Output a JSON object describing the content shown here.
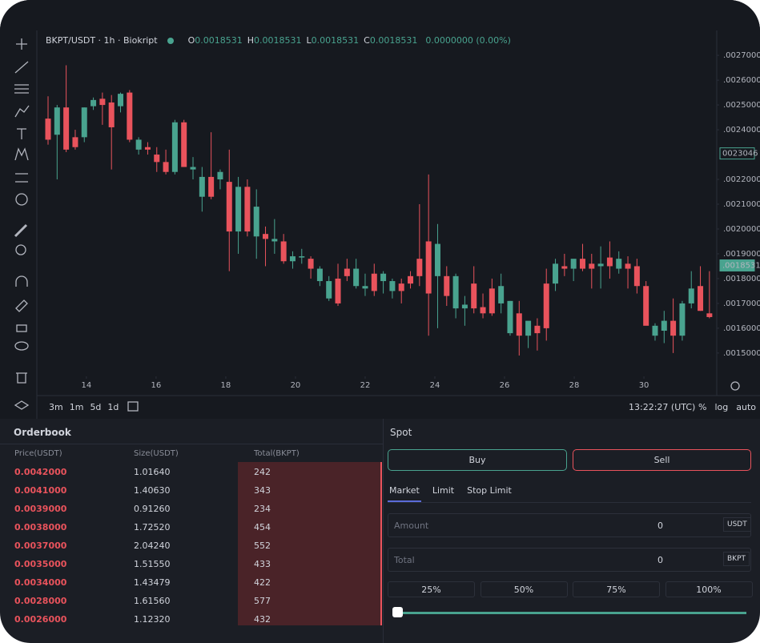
{
  "chart_data": {
    "type": "candlestick",
    "title": "BKPT/USDT · 1h · Biokript",
    "ohlc_legend": [
      {
        "key": "O",
        "value": "0.0018531"
      },
      {
        "key": "H",
        "value": "0.0018531"
      },
      {
        "key": "L",
        "value": "0.0018531"
      },
      {
        "key": "C",
        "value": "0.0018531"
      }
    ],
    "change": "0.0000000 (0.00%)",
    "x": [
      12.9,
      13.16,
      13.42,
      13.68,
      13.94,
      14.2,
      14.46,
      14.72,
      14.98,
      15.24,
      15.5,
      15.76,
      16.02,
      16.28,
      16.54,
      16.8,
      17.06,
      17.32,
      17.58,
      17.84,
      18.1,
      18.36,
      18.62,
      18.88,
      19.14,
      19.4,
      19.66,
      19.92,
      20.18,
      20.44,
      20.7,
      20.96,
      21.22,
      21.48,
      21.74,
      22,
      22.26,
      22.52,
      22.78,
      23.04,
      23.3,
      23.56,
      23.82,
      24.08,
      24.34,
      24.6,
      24.86,
      25.12,
      25.38,
      25.64,
      25.9,
      26.16,
      26.42,
      26.68,
      26.94,
      27.2,
      27.46,
      27.72,
      27.98,
      28.24,
      28.5,
      28.76,
      29.02,
      29.28,
      29.54,
      29.8,
      30.06,
      30.32,
      30.58,
      30.84,
      31.1,
      31.36,
      31.62,
      31.88
    ],
    "open": [
      0.002445,
      0.00238,
      0.00249,
      0.00237,
      0.00237,
      0.002495,
      0.002525,
      0.00251,
      0.002495,
      0.00255,
      0.00232,
      0.00233,
      0.0023,
      0.00227,
      0.00223,
      0.00243,
      0.00224,
      0.00213,
      0.00221,
      0.0022,
      0.00219,
      0.00199,
      0.00217,
      0.00197,
      0.00198,
      0.00195,
      0.00195,
      0.00187,
      0.001885,
      0.00188,
      0.00179,
      0.00172,
      0.0018,
      0.00184,
      0.00177,
      0.00176,
      0.00182,
      0.00179,
      0.00175,
      0.00178,
      0.00181,
      0.00188,
      0.00195,
      0.00181,
      0.00181,
      0.00168,
      0.00168,
      0.00178,
      0.001685,
      0.00176,
      0.0017,
      0.00158,
      0.00166,
      0.00157,
      0.00161,
      0.00178,
      0.00178,
      0.00185,
      0.00184,
      0.00188,
      0.00186,
      0.00185,
      0.001885,
      0.00184,
      0.00186,
      0.00185,
      0.00177,
      0.00157,
      0.00159,
      0.00163,
      0.00157,
      0.0017,
      0.00177,
      0.00166
    ],
    "high": [
      0.002535,
      0.0025,
      0.00266,
      0.0024,
      0.00249,
      0.00253,
      0.00255,
      0.00254,
      0.00255,
      0.00256,
      0.00237,
      0.00235,
      0.00233,
      0.00232,
      0.00244,
      0.00244,
      0.00229,
      0.00225,
      0.00239,
      0.00224,
      0.00232,
      0.00221,
      0.0022,
      0.00216,
      0.00201,
      0.00204,
      0.00198,
      0.00191,
      0.00192,
      0.00189,
      0.00185,
      0.00181,
      0.00186,
      0.00188,
      0.00188,
      0.00182,
      0.00186,
      0.00183,
      0.0018,
      0.0018,
      0.00183,
      0.0021,
      0.00222,
      0.00202,
      0.00185,
      0.00182,
      0.00173,
      0.00185,
      0.00174,
      0.0018,
      0.00182,
      0.00171,
      0.00171,
      0.00162,
      0.00164,
      0.00184,
      0.00188,
      0.0019,
      0.00187,
      0.00194,
      0.0019,
      0.00193,
      0.00195,
      0.00191,
      0.00189,
      0.00188,
      0.00179,
      0.00162,
      0.00167,
      0.00172,
      0.00171,
      0.00183,
      0.00185,
      0.00183
    ],
    "low": [
      0.00234,
      0.0022,
      0.00231,
      0.00232,
      0.00235,
      0.00248,
      0.00242,
      0.00224,
      0.00247,
      0.00235,
      0.0023,
      0.0023,
      0.00223,
      0.00222,
      0.00222,
      0.00225,
      0.0022,
      0.00207,
      0.00212,
      0.00216,
      0.00183,
      0.0019,
      0.00197,
      0.00188,
      0.00185,
      0.0019,
      0.00186,
      0.00184,
      0.00186,
      0.0018,
      0.00177,
      0.00171,
      0.00169,
      0.00179,
      0.00176,
      0.00173,
      0.00173,
      0.00174,
      0.00172,
      0.0017,
      0.00176,
      0.00177,
      0.00157,
      0.0016,
      0.00169,
      0.00164,
      0.00161,
      0.00166,
      0.00164,
      0.00165,
      0.00166,
      0.00157,
      0.00149,
      0.00152,
      0.00151,
      0.00155,
      0.00175,
      0.00181,
      0.00179,
      0.00183,
      0.00176,
      0.00176,
      0.0018,
      0.00182,
      0.00176,
      0.00174,
      0.00162,
      0.00155,
      0.00154,
      0.0015,
      0.00155,
      0.00168,
      0.00167,
      0.00164
    ],
    "close": [
      0.00236,
      0.00249,
      0.00232,
      0.00233,
      0.00249,
      0.00252,
      0.0025,
      0.00241,
      0.002545,
      0.00236,
      0.00236,
      0.00232,
      0.00227,
      0.00223,
      0.00243,
      0.00225,
      0.00225,
      0.00221,
      0.00213,
      0.00223,
      0.00199,
      0.00217,
      0.00199,
      0.00209,
      0.00196,
      0.00196,
      0.00187,
      0.00189,
      0.00189,
      0.00184,
      0.00184,
      0.00179,
      0.0017,
      0.00181,
      0.00184,
      0.00177,
      0.00175,
      0.00182,
      0.00179,
      0.00175,
      0.00178,
      0.00181,
      0.00174,
      0.00194,
      0.00173,
      0.00181,
      0.001695,
      0.00168,
      0.00166,
      0.00166,
      0.00177,
      0.00171,
      0.00157,
      0.00163,
      0.00158,
      0.0016,
      0.00186,
      0.00184,
      0.00188,
      0.00184,
      0.00184,
      0.00186,
      0.00185,
      0.00188,
      0.00184,
      0.00177,
      0.00161,
      0.00161,
      0.00163,
      0.00157,
      0.0017,
      0.00176,
      0.00167,
      0.001645
    ],
    "up_color": "#49a38f",
    "down_color": "#e9535c",
    "xlim": [
      12.67,
      32.09
    ],
    "xticks": [
      14,
      16,
      18,
      20,
      22,
      24,
      26,
      28,
      30
    ],
    "ylim": [
      0.001406,
      0.002794
    ],
    "yticks": [
      {
        "value": 0.0027,
        "label": ".0027000"
      },
      {
        "value": 0.0026,
        "label": ".0026000"
      },
      {
        "value": 0.0025,
        "label": ".0025000"
      },
      {
        "value": 0.0024,
        "label": ".0024000"
      },
      {
        "value": 0.0022,
        "label": ".0022000"
      },
      {
        "value": 0.0021,
        "label": ".0021000"
      },
      {
        "value": 0.002,
        "label": ".0020000"
      },
      {
        "value": 0.0019,
        "label": ".0019000"
      },
      {
        "value": 0.0018,
        "label": ".0018000"
      },
      {
        "value": 0.0017,
        "label": ".0017000"
      },
      {
        "value": 0.0016,
        "label": ".0016000"
      },
      {
        "value": 0.0015,
        "label": ".0015000"
      }
    ],
    "price_markers": [
      {
        "value": 0.0023046,
        "label": "0023046"
      },
      {
        "value": 0.0018531,
        "label": ".0018531"
      }
    ],
    "intervals": [
      "3m",
      "1m",
      "5d",
      "1d"
    ],
    "time": "13:22:27 (UTC)",
    "scale_options": [
      "%",
      "log",
      "auto"
    ]
  },
  "orderbook": {
    "title": "Orderbook",
    "columns": [
      "Price(USDT)",
      "Size(USDT)",
      "Total(BKPT)"
    ],
    "rows": [
      [
        "0.0042000",
        "1.01640",
        "242"
      ],
      [
        "0.0041000",
        "1.40630",
        "343"
      ],
      [
        "0.0039000",
        "0.91260",
        "234"
      ],
      [
        "0.0038000",
        "1.72520",
        "454"
      ],
      [
        "0.0037000",
        "2.04240",
        "552"
      ],
      [
        "0.0035000",
        "1.51550",
        "433"
      ],
      [
        "0.0034000",
        "1.43479",
        "422"
      ],
      [
        "0.0028000",
        "1.61560",
        "577"
      ],
      [
        "0.0026000",
        "1.12320",
        "432"
      ]
    ]
  },
  "spot": {
    "title": "Spot",
    "buy": "Buy",
    "sell": "Sell",
    "tabs": [
      "Market",
      "Limit",
      "Stop Limit"
    ],
    "amount": {
      "label": "Amount",
      "value": "0",
      "unit": "USDT"
    },
    "total": {
      "label": "Total",
      "value": "0",
      "unit": "BKPT"
    },
    "percents": [
      "25%",
      "50%",
      "75%",
      "100%"
    ]
  }
}
